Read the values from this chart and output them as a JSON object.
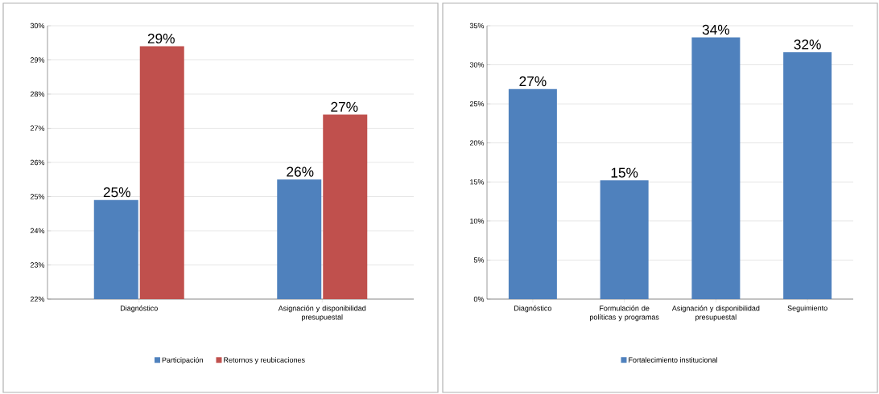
{
  "chart_data": [
    {
      "type": "bar",
      "categories": [
        "Diagnóstico",
        "Asignación y disponibilidad presupuestal"
      ],
      "series": [
        {
          "name": "Participación",
          "color": "#4f81bd",
          "values": [
            24.9,
            25.5
          ],
          "value_labels": [
            "25%",
            "26%"
          ]
        },
        {
          "name": "Retornos y reubicaciones",
          "color": "#c0504d",
          "values": [
            29.4,
            27.4
          ],
          "value_labels": [
            "29%",
            "27%"
          ]
        }
      ],
      "ylim": [
        22,
        30
      ],
      "yticks": [
        {
          "value": 22,
          "label": "22%"
        },
        {
          "value": 23,
          "label": "23%"
        },
        {
          "value": 24,
          "label": "24%"
        },
        {
          "value": 25,
          "label": "25%"
        },
        {
          "value": 26,
          "label": "26%"
        },
        {
          "value": 27,
          "label": "27%"
        },
        {
          "value": 28,
          "label": "28%"
        },
        {
          "value": 29,
          "label": "29%"
        },
        {
          "value": 30,
          "label": "30%"
        }
      ],
      "grid": "y",
      "legend": "bottom"
    },
    {
      "type": "bar",
      "categories": [
        "Diagnóstico",
        "Formulación de políticas y programas",
        "Asignación y disponibilidad presupuestal",
        "Seguimiento"
      ],
      "series": [
        {
          "name": "Fortalecimiento institucional",
          "color": "#4f81bd",
          "values": [
            26.9,
            15.2,
            33.5,
            31.6
          ],
          "value_labels": [
            "27%",
            "15%",
            "34%",
            "32%"
          ]
        }
      ],
      "ylim": [
        0,
        35
      ],
      "yticks": [
        {
          "value": 0,
          "label": "0%"
        },
        {
          "value": 5,
          "label": "5%"
        },
        {
          "value": 10,
          "label": "10%"
        },
        {
          "value": 15,
          "label": "15%"
        },
        {
          "value": 20,
          "label": "20%"
        },
        {
          "value": 25,
          "label": "25%"
        },
        {
          "value": 30,
          "label": "30%"
        },
        {
          "value": 35,
          "label": "35%"
        }
      ],
      "grid": "y",
      "legend": "bottom"
    }
  ]
}
